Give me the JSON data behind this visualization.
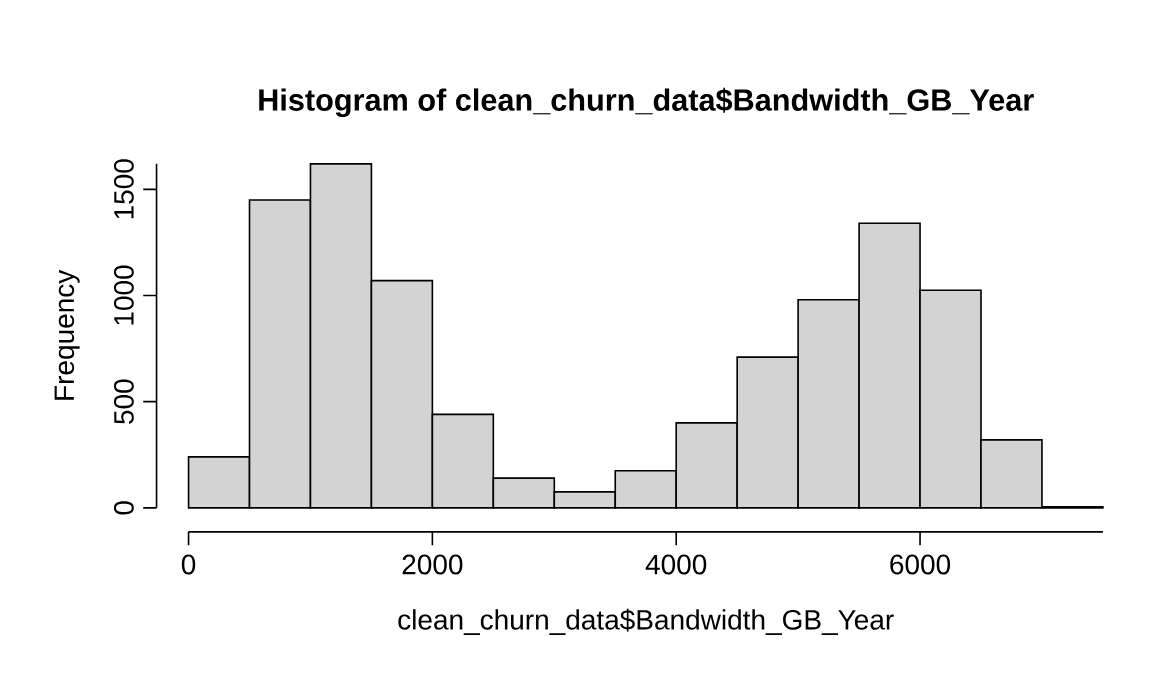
{
  "chart_data": {
    "type": "histogram",
    "title": "Histogram of clean_churn_data$Bandwidth_GB_Year",
    "xlabel": "clean_churn_data$Bandwidth_GB_Year",
    "ylabel": "Frequency",
    "bins": [
      0,
      500,
      1000,
      1500,
      2000,
      2500,
      3000,
      3500,
      4000,
      4500,
      5000,
      5500,
      6000,
      6500,
      7000,
      7500
    ],
    "values": [
      240,
      1450,
      1620,
      1070,
      440,
      140,
      75,
      175,
      400,
      710,
      980,
      1340,
      1025,
      320,
      5
    ],
    "color": "#d3d3d3",
    "xlim": [
      0,
      7500
    ],
    "ylim": [
      0,
      1620
    ],
    "xticks": [
      0,
      2000,
      4000,
      6000
    ],
    "yticks": [
      0,
      500,
      1000,
      1500
    ],
    "grid": false
  }
}
